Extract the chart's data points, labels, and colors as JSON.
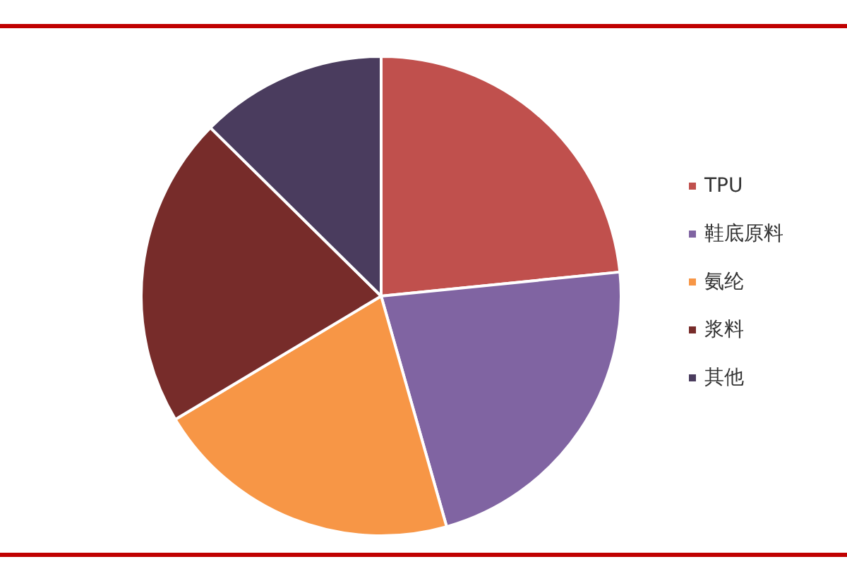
{
  "chart_data": {
    "type": "pie",
    "categories": [
      "TPU",
      "鞋底原料",
      "氨纶",
      "浆料",
      "其他"
    ],
    "values": [
      23.4,
      22.2,
      20.8,
      21.0,
      12.6
    ],
    "colors": [
      "#c0504d",
      "#8064a2",
      "#f79646",
      "#772c2a",
      "#4a3c5e"
    ],
    "legend": "right"
  }
}
